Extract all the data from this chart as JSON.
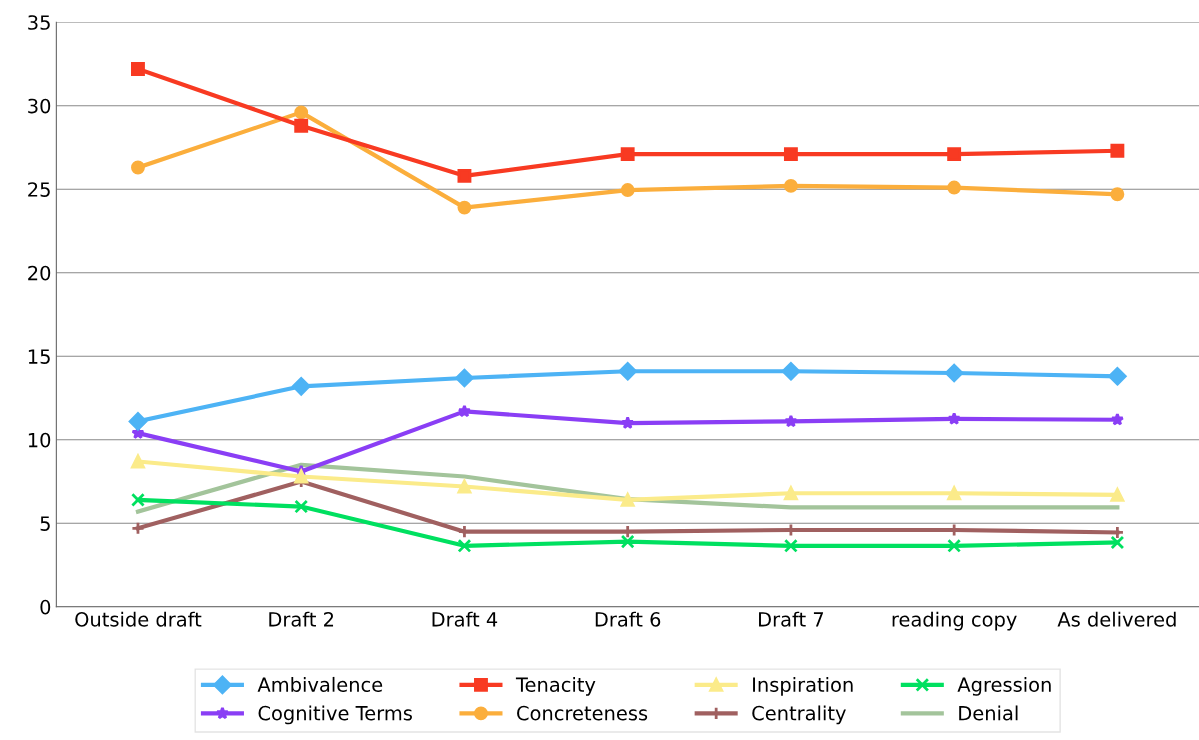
{
  "chart_data": {
    "type": "line",
    "categories": [
      "Outside draft",
      "Draft 2",
      "Draft 4",
      "Draft 6",
      "Draft 7",
      "reading copy",
      "As delivered"
    ],
    "ylim": [
      0,
      35
    ],
    "yticks": [
      0,
      5,
      10,
      15,
      20,
      25,
      30,
      35
    ],
    "grid": "y",
    "legend": "bottom",
    "line_style": "solid",
    "series": [
      {
        "name": "Ambivalence",
        "color": "#4db3f5",
        "marker": "diamond",
        "values": [
          11.1,
          13.2,
          13.7,
          14.1,
          14.1,
          14.0,
          13.8
        ]
      },
      {
        "name": "Tenacity",
        "color": "#f83a22",
        "marker": "square",
        "values": [
          32.2,
          28.8,
          25.8,
          27.1,
          27.1,
          27.1,
          27.3
        ]
      },
      {
        "name": "Inspiration",
        "color": "#fbeb8a",
        "marker": "triangle",
        "values": [
          8.7,
          7.8,
          7.2,
          6.4,
          6.8,
          6.8,
          6.7
        ]
      },
      {
        "name": "Agression",
        "color": "#00e060",
        "marker": "cross",
        "values": [
          6.4,
          6.0,
          3.65,
          3.9,
          3.65,
          3.65,
          3.85
        ]
      },
      {
        "name": "Cognitive Terms",
        "color": "#8a3ef5",
        "marker": "star",
        "values": [
          10.4,
          8.1,
          11.7,
          11.0,
          11.1,
          11.25,
          11.2
        ]
      },
      {
        "name": "Concreteness",
        "color": "#fbae3c",
        "marker": "circle",
        "values": [
          26.3,
          29.6,
          23.9,
          24.95,
          25.2,
          25.1,
          24.7
        ]
      },
      {
        "name": "Centrality",
        "color": "#a06060",
        "marker": "plus",
        "values": [
          4.7,
          7.5,
          4.5,
          4.5,
          4.6,
          4.6,
          4.45
        ]
      },
      {
        "name": "Denial",
        "color": "#a3c49b",
        "marker": "none",
        "values": [
          5.7,
          8.5,
          7.8,
          6.45,
          5.95,
          5.95,
          5.95
        ]
      }
    ]
  }
}
